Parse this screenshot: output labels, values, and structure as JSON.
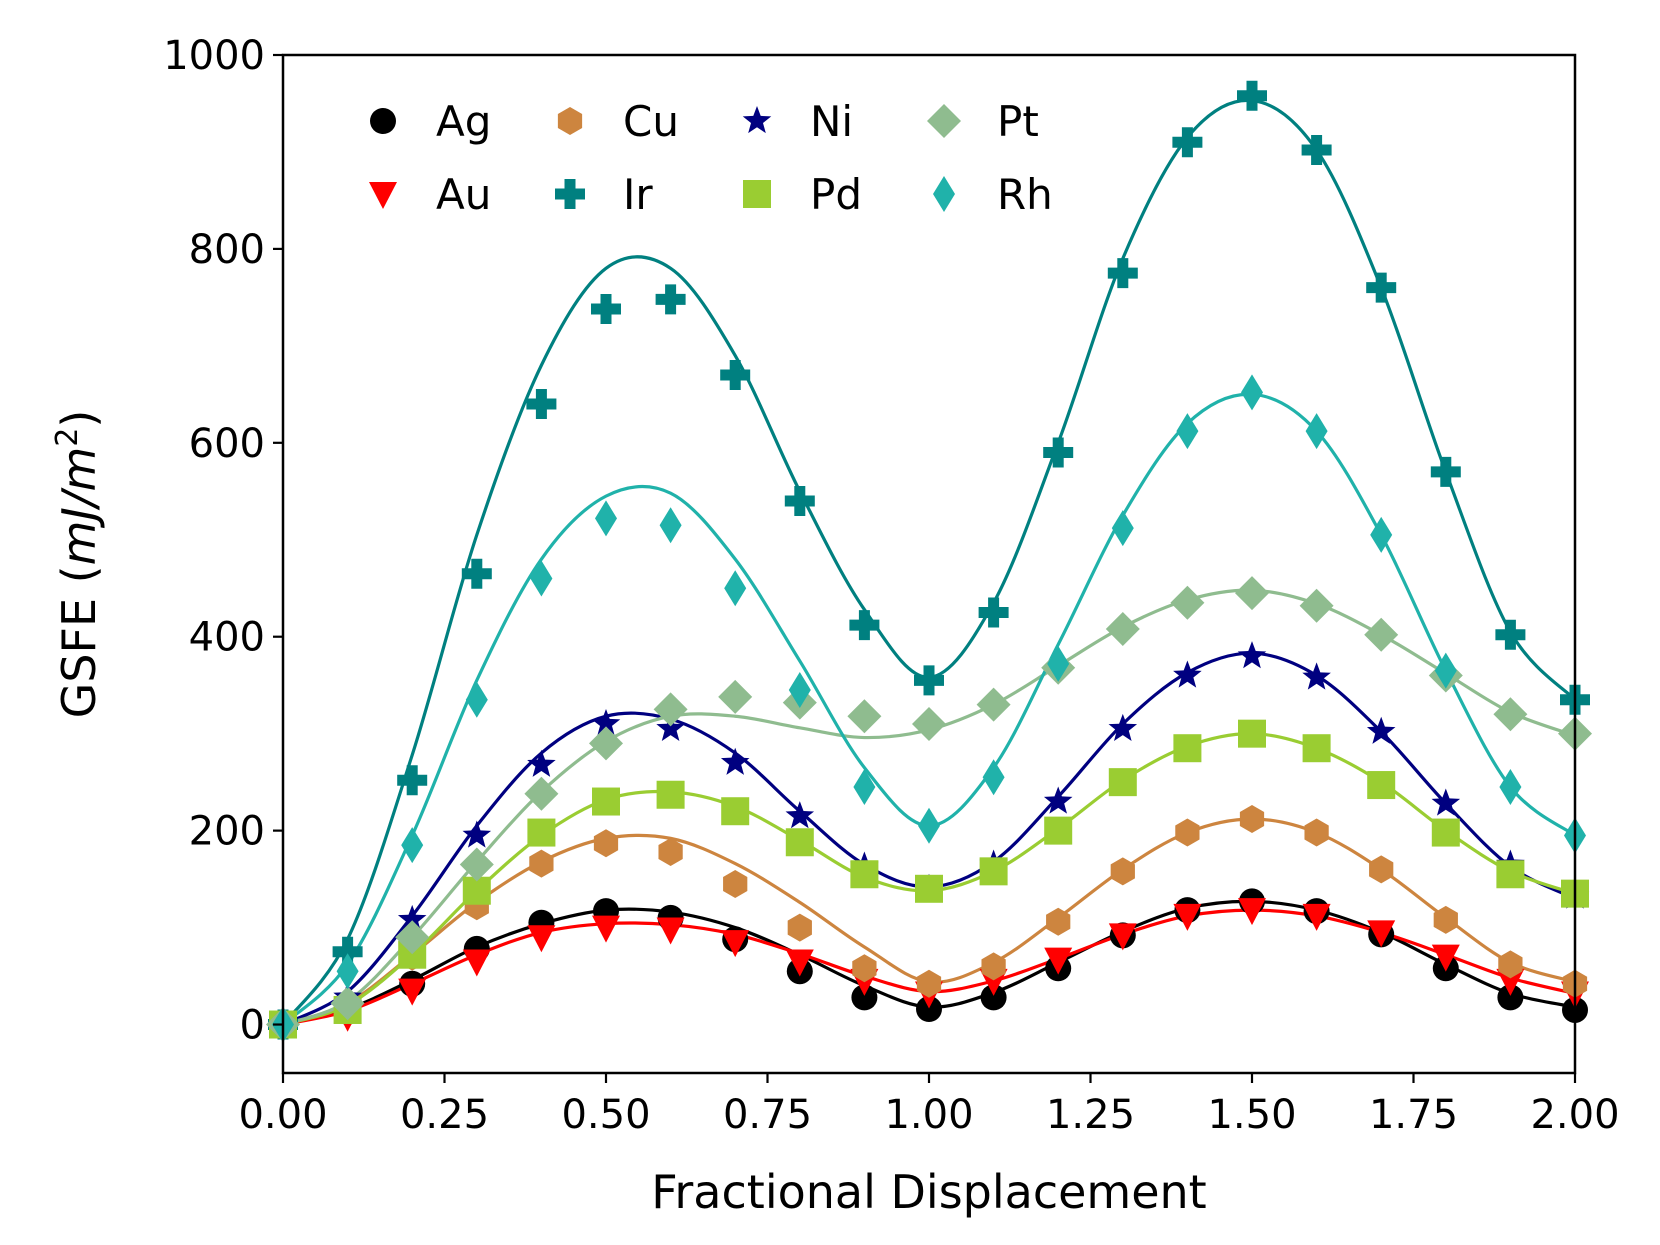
{
  "chart_data": {
    "type": "scatter",
    "xlabel": "Fractional Displacement",
    "ylabel": "GSFE (mJ/m²)",
    "ylabel_parts": {
      "prefix": "GSFE (",
      "unit": "mJ/m",
      "exp": "2",
      "suffix": ")"
    },
    "xlim": [
      0.0,
      2.0
    ],
    "ylim": [
      -50,
      1000
    ],
    "xticks": [
      0.0,
      0.25,
      0.5,
      0.75,
      1.0,
      1.25,
      1.5,
      1.75,
      2.0
    ],
    "xtick_labels": [
      "0.00",
      "0.25",
      "0.50",
      "0.75",
      "1.00",
      "1.25",
      "1.50",
      "1.75",
      "2.00"
    ],
    "yticks": [
      0,
      200,
      400,
      600,
      800,
      1000
    ],
    "ytick_labels": [
      "0",
      "200",
      "400",
      "600",
      "800",
      "1000"
    ],
    "grid": false,
    "legend_position": "top-left",
    "x": [
      0.0,
      0.1,
      0.2,
      0.3,
      0.4,
      0.5,
      0.6,
      0.7,
      0.8,
      0.9,
      1.0,
      1.1,
      1.2,
      1.3,
      1.4,
      1.5,
      1.6,
      1.7,
      1.8,
      1.9,
      2.0
    ],
    "series": [
      {
        "name": "Ag",
        "marker": "circle",
        "color": "#000000",
        "values": [
          0,
          13,
          42,
          78,
          105,
          117,
          110,
          88,
          55,
          28,
          16,
          28,
          58,
          92,
          118,
          127,
          117,
          93,
          58,
          28,
          15
        ],
        "fit": [
          0,
          16,
          46,
          80,
          104,
          118,
          116,
          100,
          72,
          40,
          18,
          33,
          64,
          96,
          120,
          127,
          118,
          95,
          62,
          32,
          18
        ]
      },
      {
        "name": "Au",
        "marker": "triangle-down",
        "color": "#ff0000",
        "values": [
          0,
          8,
          35,
          65,
          90,
          100,
          98,
          85,
          65,
          45,
          32,
          45,
          67,
          92,
          112,
          118,
          112,
          95,
          70,
          45,
          32
        ],
        "fit": [
          0,
          14,
          42,
          72,
          95,
          104,
          103,
          93,
          73,
          50,
          34,
          45,
          68,
          93,
          112,
          118,
          112,
          95,
          72,
          48,
          32
        ]
      },
      {
        "name": "Cu",
        "marker": "hexagon",
        "color": "#cd853f",
        "values": [
          0,
          18,
          70,
          122,
          166,
          187,
          178,
          145,
          100,
          58,
          42,
          60,
          106,
          158,
          198,
          212,
          198,
          160,
          108,
          62,
          42
        ],
        "fit": [
          0,
          22,
          72,
          126,
          168,
          192,
          192,
          166,
          126,
          80,
          44,
          64,
          110,
          160,
          198,
          212,
          198,
          160,
          110,
          64,
          44
        ]
      },
      {
        "name": "Ir",
        "marker": "cross",
        "color": "#008080",
        "values": [
          0,
          75,
          252,
          465,
          640,
          738,
          748,
          670,
          540,
          412,
          355,
          425,
          590,
          775,
          910,
          958,
          902,
          760,
          570,
          402,
          335
        ],
        "fit": [
          0,
          88,
          278,
          505,
          680,
          780,
          780,
          690,
          550,
          428,
          358,
          435,
          600,
          790,
          915,
          953,
          902,
          760,
          570,
          405,
          335
        ]
      },
      {
        "name": "Ni",
        "marker": "star",
        "color": "#000080",
        "values": [
          0,
          28,
          108,
          195,
          268,
          310,
          305,
          270,
          215,
          163,
          140,
          165,
          230,
          305,
          360,
          380,
          358,
          302,
          228,
          165,
          132
        ],
        "fit": [
          0,
          34,
          112,
          205,
          280,
          318,
          315,
          280,
          220,
          165,
          142,
          168,
          235,
          310,
          363,
          383,
          360,
          302,
          228,
          163,
          130
        ]
      },
      {
        "name": "Pd",
        "marker": "square",
        "color": "#9acd32",
        "values": [
          0,
          15,
          72,
          138,
          198,
          230,
          237,
          220,
          188,
          155,
          140,
          158,
          200,
          250,
          285,
          300,
          285,
          247,
          198,
          155,
          135
        ],
        "fit": [
          0,
          20,
          72,
          138,
          195,
          232,
          240,
          225,
          190,
          152,
          138,
          158,
          202,
          252,
          287,
          300,
          285,
          250,
          200,
          158,
          135
        ]
      },
      {
        "name": "Pt",
        "marker": "diamond",
        "color": "#8fbc8f",
        "values": [
          0,
          22,
          90,
          165,
          238,
          290,
          325,
          338,
          332,
          318,
          310,
          330,
          368,
          408,
          435,
          445,
          432,
          402,
          360,
          320,
          300
        ],
        "fit": [
          0,
          24,
          90,
          168,
          240,
          292,
          318,
          318,
          306,
          296,
          304,
          330,
          370,
          410,
          438,
          448,
          434,
          402,
          362,
          322,
          298
        ]
      },
      {
        "name": "Rh",
        "marker": "thin-diamond",
        "color": "#20b2aa",
        "values": [
          0,
          55,
          185,
          335,
          460,
          522,
          515,
          450,
          345,
          245,
          205,
          255,
          372,
          512,
          612,
          652,
          612,
          505,
          365,
          245,
          195
        ],
        "fit": [
          0,
          62,
          195,
          355,
          480,
          545,
          548,
          480,
          375,
          265,
          205,
          265,
          392,
          525,
          620,
          650,
          612,
          505,
          365,
          245,
          195
        ]
      }
    ]
  }
}
